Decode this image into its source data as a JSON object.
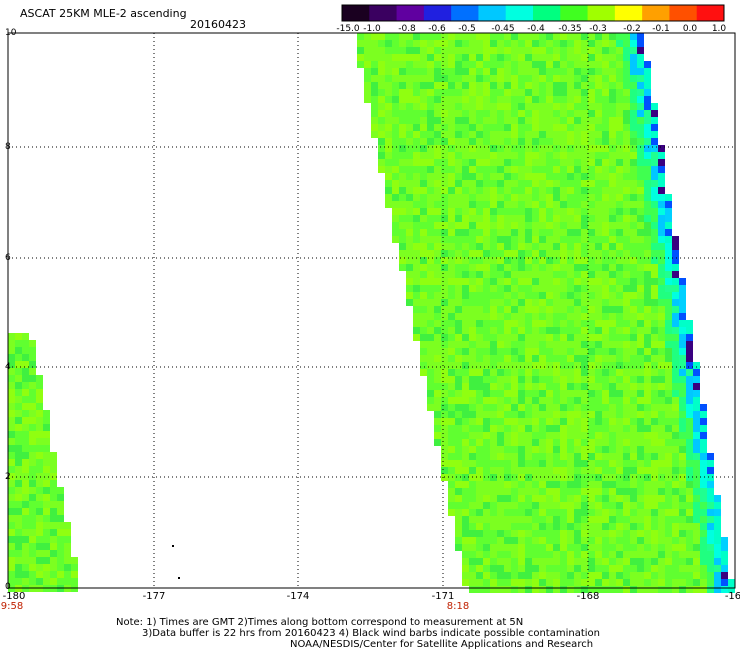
{
  "header": {
    "title": "ASCAT 25KM MLE-2 ascending",
    "date": "20160423"
  },
  "colorbar": {
    "tick_labels": [
      "-15.0",
      "-1.0",
      "-0.8",
      "-0.6",
      "-0.5",
      "-0.45",
      "-0.4",
      "-0.35",
      "-0.3",
      "-0.2",
      "-0.1",
      "0.0",
      "1.0"
    ],
    "colors": [
      "#1a0020",
      "#3a0060",
      "#6000a0",
      "#2020e0",
      "#0070ff",
      "#00c8ff",
      "#00ffe0",
      "#00ff80",
      "#40ff20",
      "#a0ff00",
      "#ffff00",
      "#ffa000",
      "#ff5000",
      "#ff1010"
    ]
  },
  "axes": {
    "x_ticks": [
      "-180",
      "-177",
      "-174",
      "-171",
      "-168",
      "-16"
    ],
    "y_ticks": [
      "0",
      "2",
      "4",
      "6",
      "8",
      "10"
    ]
  },
  "time_labels": [
    "9:58",
    "8:18"
  ],
  "notes": {
    "line1": "Note: 1) Times are GMT 2)Times along bottom correspond to measurement at 5N",
    "line2": "3)Data buffer is 22 hrs from 20160423 4) Black wind barbs indicate possible contamination",
    "line3": "NOAA/NESDIS/Center for Satellite Applications and Research"
  }
}
